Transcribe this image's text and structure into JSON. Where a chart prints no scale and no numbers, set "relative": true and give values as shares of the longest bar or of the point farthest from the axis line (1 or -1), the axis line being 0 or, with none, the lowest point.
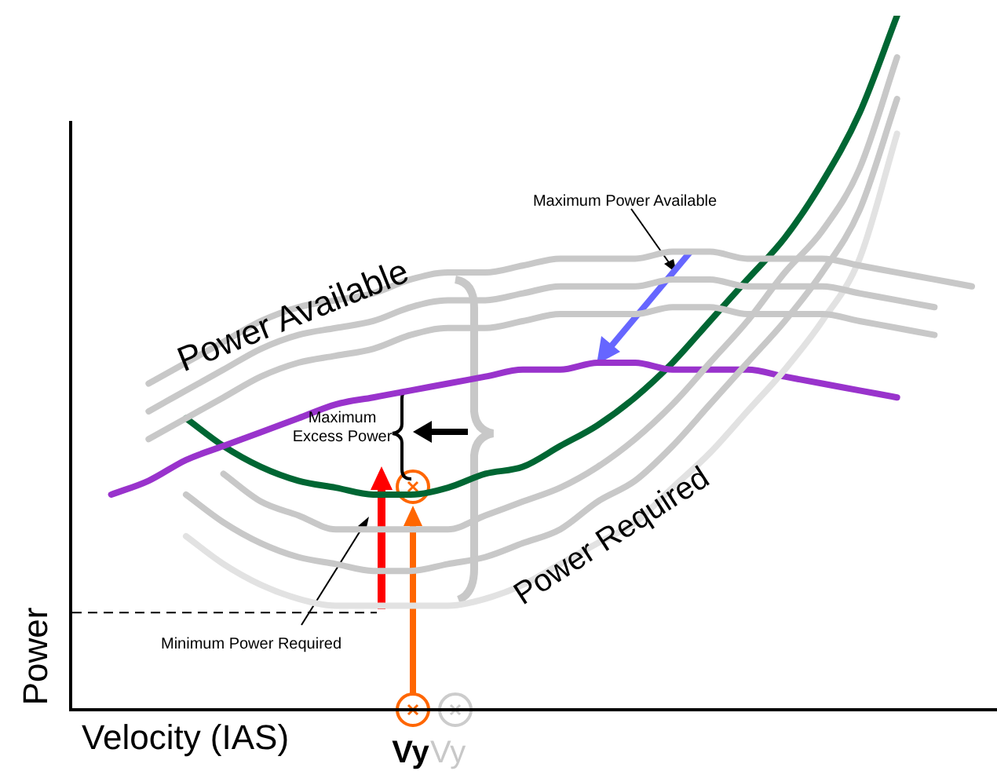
{
  "chart_data": {
    "type": "line",
    "relative": true,
    "xlabel": "Velocity (IAS)",
    "ylabel": "Power",
    "categories": [
      null,
      null,
      null,
      null,
      null,
      null,
      null,
      null,
      null,
      "Vy",
      "Vy",
      null,
      null,
      null,
      null,
      null,
      null,
      null,
      null,
      null,
      null,
      null,
      null,
      null,
      null
    ],
    "series": [
      {
        "color": "#c8c8c8",
        "values": [
          null,
          null,
          0.39,
          0.42,
          0.45,
          0.48,
          0.5,
          0.51,
          0.52,
          0.54,
          0.55,
          0.55,
          0.56,
          0.57,
          0.57,
          0.57,
          0.58,
          0.58,
          0.57,
          0.57,
          0.57,
          0.56,
          0.55,
          0.54,
          null
        ]
      },
      {
        "color": "#c8c8c8",
        "values": [
          null,
          null,
          0.43,
          0.46,
          0.49,
          0.52,
          0.54,
          0.55,
          0.56,
          0.58,
          0.59,
          0.59,
          0.6,
          0.61,
          0.61,
          0.61,
          0.62,
          0.62,
          0.61,
          0.61,
          0.61,
          0.6,
          0.59,
          0.58,
          null
        ]
      },
      {
        "color": "#c8c8c8",
        "values": [
          null,
          null,
          0.47,
          0.5,
          0.53,
          0.56,
          0.58,
          0.59,
          0.6,
          0.62,
          0.63,
          0.63,
          0.64,
          0.65,
          0.65,
          0.65,
          0.66,
          0.66,
          0.65,
          0.65,
          0.65,
          0.64,
          0.63,
          0.62,
          0.61
        ]
      },
      {
        "color": "#e2e2e2",
        "values": [
          null,
          null,
          null,
          0.25,
          0.21,
          0.18,
          0.16,
          0.15,
          0.15,
          0.15,
          0.15,
          0.16,
          0.18,
          0.21,
          0.24,
          0.27,
          0.32,
          0.37,
          0.43,
          0.49,
          0.56,
          0.65,
          0.83,
          null,
          null
        ]
      },
      {
        "color": "#c8c8c8",
        "values": [
          null,
          null,
          null,
          0.31,
          0.27,
          0.24,
          0.22,
          0.21,
          0.2,
          0.2,
          0.21,
          0.22,
          0.24,
          0.26,
          0.3,
          0.33,
          0.38,
          0.44,
          0.5,
          0.56,
          0.63,
          0.72,
          0.88,
          null,
          null
        ]
      },
      {
        "color": "#c8c8c8",
        "values": [
          null,
          null,
          null,
          null,
          0.34,
          0.3,
          0.28,
          0.26,
          0.26,
          0.26,
          0.26,
          0.28,
          0.3,
          0.32,
          0.35,
          0.39,
          0.44,
          0.5,
          0.56,
          0.63,
          0.69,
          0.78,
          0.94,
          null,
          null
        ]
      },
      {
        "color": "#9933cc",
        "values": [
          null,
          0.31,
          0.33,
          0.36,
          0.38,
          0.4,
          0.42,
          0.44,
          0.45,
          0.46,
          0.47,
          0.48,
          0.49,
          0.49,
          0.5,
          0.5,
          0.49,
          0.49,
          0.49,
          0.48,
          0.47,
          0.46,
          0.45,
          null,
          null
        ]
      },
      {
        "color": "#006633",
        "values": [
          null,
          null,
          null,
          0.42,
          0.38,
          0.35,
          0.33,
          0.32,
          0.31,
          0.31,
          0.32,
          0.34,
          0.35,
          0.38,
          0.41,
          0.45,
          0.5,
          0.56,
          0.62,
          0.68,
          0.76,
          0.86,
          1,
          null,
          null
        ]
      }
    ],
    "ref_lines": [
      {
        "axis": "y",
        "value": 0.14,
        "line_style": "dashed"
      }
    ],
    "annotations": [
      "Power Available",
      "Power Required",
      "Maximum Power Available",
      "Maximum Excess Power",
      "Minimum Power Required"
    ]
  }
}
